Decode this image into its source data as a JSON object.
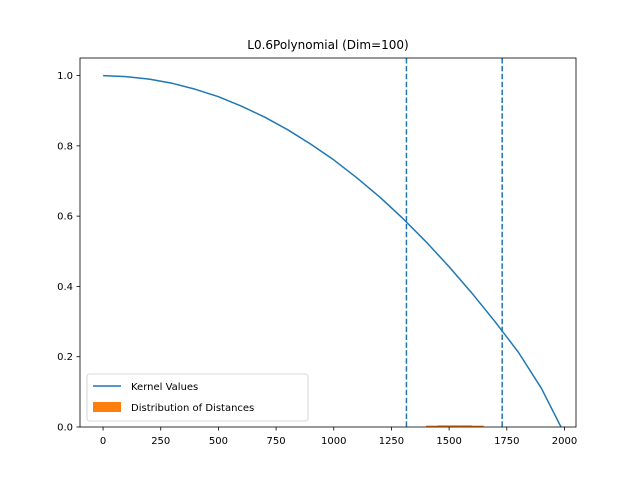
{
  "chart_data": {
    "type": "line",
    "title": "L0.6Polynomial (Dim=100)",
    "xlabel": "",
    "ylabel": "",
    "xlim": [
      -100,
      2050
    ],
    "ylim": [
      0,
      1.05
    ],
    "x_ticks": [
      0,
      250,
      500,
      750,
      1000,
      1250,
      1500,
      1750,
      2000
    ],
    "y_ticks": [
      0.0,
      0.2,
      0.4,
      0.6,
      0.8,
      1.0
    ],
    "x_tick_labels": [
      "0",
      "250",
      "500",
      "750",
      "1000",
      "1250",
      "1500",
      "1750",
      "2000"
    ],
    "y_tick_labels": [
      "0.0",
      "0.2",
      "0.4",
      "0.6",
      "0.8",
      "1.0"
    ],
    "grid": false,
    "legend": {
      "position": "lower-left",
      "entries": [
        "Kernel Values",
        "Distribution of Distances"
      ]
    },
    "series": [
      {
        "name": "Kernel Values",
        "kind": "line",
        "color": "#1f77b4",
        "x": [
          0,
          100,
          200,
          300,
          400,
          500,
          600,
          700,
          800,
          900,
          1000,
          1100,
          1200,
          1300,
          1400,
          1500,
          1600,
          1700,
          1800,
          1900,
          1985
        ],
        "y": [
          1.0,
          0.997,
          0.99,
          0.978,
          0.961,
          0.94,
          0.913,
          0.882,
          0.846,
          0.805,
          0.76,
          0.709,
          0.654,
          0.593,
          0.527,
          0.456,
          0.38,
          0.299,
          0.213,
          0.11,
          0.0
        ]
      },
      {
        "name": "Distribution of Distances",
        "kind": "histogram",
        "color": "#ff7f0e",
        "bins": [
          {
            "x0": 1400,
            "x1": 1450,
            "y": 0.004
          },
          {
            "x0": 1450,
            "x1": 1500,
            "y": 0.005
          },
          {
            "x0": 1500,
            "x1": 1550,
            "y": 0.005
          },
          {
            "x0": 1550,
            "x1": 1600,
            "y": 0.005
          },
          {
            "x0": 1600,
            "x1": 1650,
            "y": 0.004
          }
        ]
      }
    ],
    "vlines": [
      {
        "x": 1315,
        "color": "#1f77b4",
        "style": "dashed"
      },
      {
        "x": 1730,
        "color": "#1f77b4",
        "style": "dashed"
      }
    ]
  }
}
